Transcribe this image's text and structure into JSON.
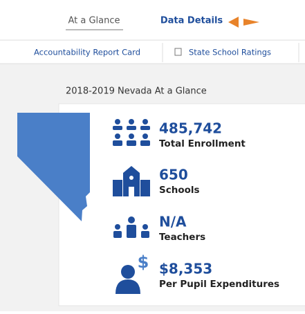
{
  "tabs": [
    "At a Glance",
    "Data Details"
  ],
  "links": [
    "Accountability Report Card",
    "State School Ratings"
  ],
  "heading": "2018-2019 Nevada At a Glance",
  "stats": [
    {
      "value": "485,742",
      "label": "Total Enrollment"
    },
    {
      "value": "650",
      "label": "Schools"
    },
    {
      "value": "N/A",
      "label": "Teachers"
    },
    {
      "value": "$8,353",
      "label": "Per Pupil Expenditures"
    }
  ]
}
